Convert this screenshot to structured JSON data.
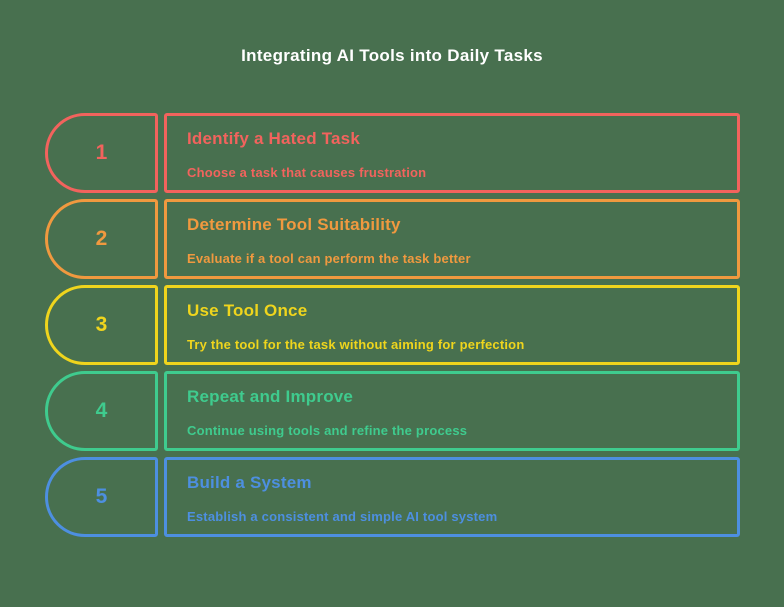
{
  "background_color": "#48704F",
  "title": {
    "text": "Integrating AI Tools into Daily Tasks",
    "color": "#FFFFFF"
  },
  "steps": [
    {
      "number": "1",
      "title": "Identify a Hated Task",
      "description": "Choose a task that causes frustration",
      "color": "#F2635D"
    },
    {
      "number": "2",
      "title": "Determine Tool Suitability",
      "description": "Evaluate if a tool can perform the task better",
      "color": "#F0993F"
    },
    {
      "number": "3",
      "title": "Use Tool Once",
      "description": "Try the tool for the task without aiming for perfection",
      "color": "#EFD51D"
    },
    {
      "number": "4",
      "title": "Repeat and Improve",
      "description": "Continue using tools and refine the process",
      "color": "#3FCB8E"
    },
    {
      "number": "5",
      "title": "Build a System",
      "description": "Establish a consistent and simple AI tool system",
      "color": "#4D8FE0"
    }
  ]
}
